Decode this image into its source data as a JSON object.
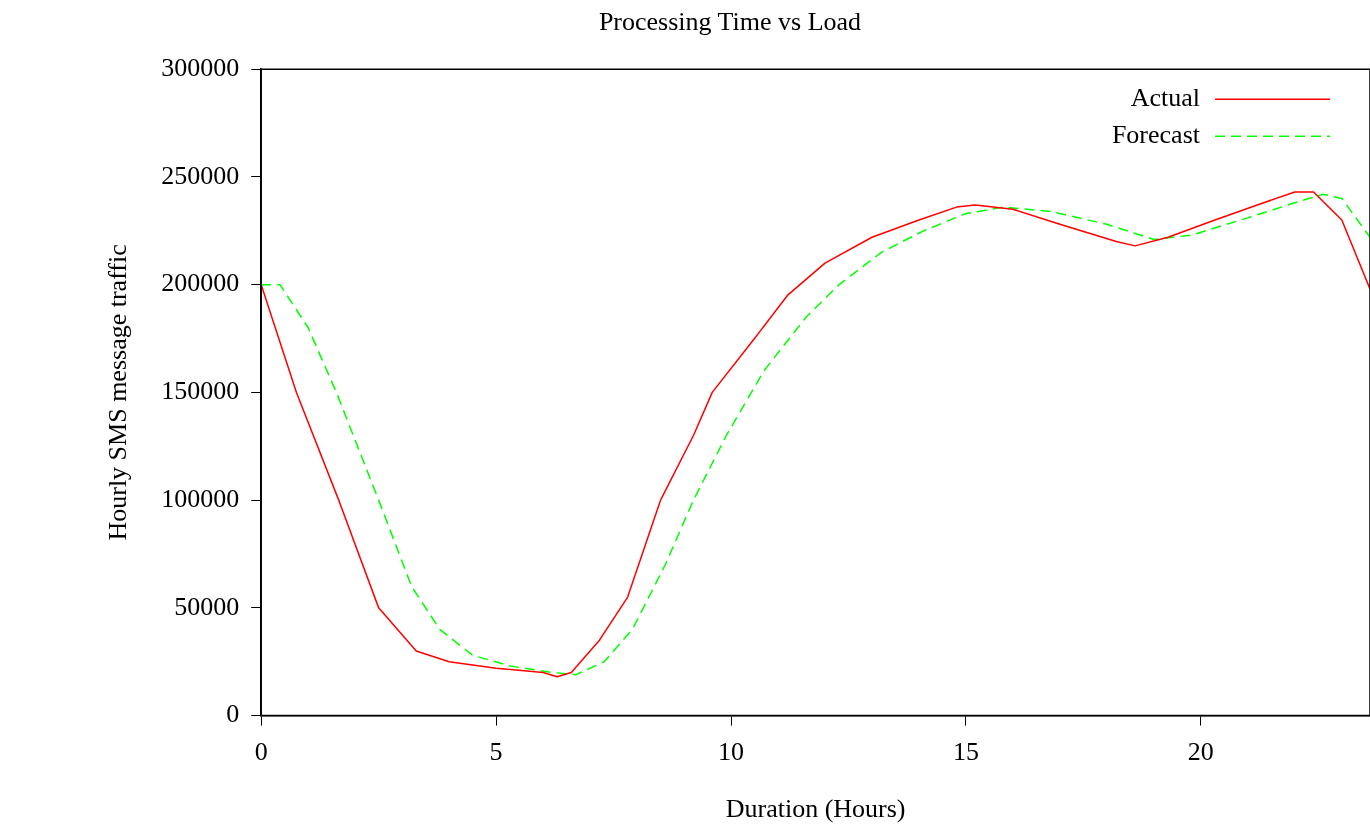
{
  "chart_data": {
    "type": "line",
    "title": "Processing Time vs Load",
    "xlabel": "Duration (Hours)",
    "ylabel": "Hourly SMS message traffic",
    "xlim": [
      0,
      23.6
    ],
    "xticks": [
      0,
      5,
      10,
      15,
      20
    ],
    "ylim": [
      0,
      300000
    ],
    "yticks": [
      0,
      50000,
      100000,
      150000,
      200000,
      250000,
      300000
    ],
    "grid": false,
    "legend": "top right",
    "marker": "none",
    "series": [
      {
        "name": "Actual",
        "color": "#ff0000",
        "line_style": "solid",
        "x": [
          0,
          0.75,
          1.65,
          2.5,
          3.3,
          4,
          5,
          6,
          6.3,
          6.6,
          7.2,
          7.8,
          8.5,
          9.2,
          9.6,
          10.5,
          11.2,
          12,
          13,
          14,
          14.8,
          15.2,
          16,
          17,
          18.2,
          18.6,
          19.3,
          20.3,
          21.2,
          22,
          22.4,
          23,
          23.6
        ],
        "values": [
          200000,
          150000,
          100000,
          50000,
          30000,
          25000,
          22000,
          20000,
          18000,
          20000,
          35000,
          55000,
          100000,
          130000,
          150000,
          175000,
          195000,
          210000,
          222000,
          230000,
          236000,
          237000,
          235000,
          228000,
          220000,
          218000,
          222000,
          230000,
          237000,
          243000,
          243000,
          230000,
          198000
        ]
      },
      {
        "name": "Forecast",
        "color": "#00ff00",
        "line_style": "dashed",
        "x": [
          0,
          0.4,
          1,
          1.6,
          2.5,
          3.2,
          3.8,
          4.5,
          5.3,
          6.2,
          6.7,
          7.3,
          7.9,
          8.6,
          9.2,
          9.9,
          10.7,
          11.6,
          12.3,
          13.2,
          14.1,
          15,
          15.8,
          16.8,
          18,
          19,
          19.8,
          21,
          22,
          22.6,
          23,
          23.6
        ],
        "values": [
          200000,
          200000,
          180000,
          150000,
          100000,
          60000,
          40000,
          28000,
          23000,
          20000,
          19000,
          25000,
          40000,
          70000,
          100000,
          130000,
          160000,
          185000,
          200000,
          215000,
          225000,
          233000,
          236000,
          234000,
          228000,
          221000,
          223000,
          231000,
          238000,
          242000,
          240000,
          222000
        ]
      }
    ]
  }
}
